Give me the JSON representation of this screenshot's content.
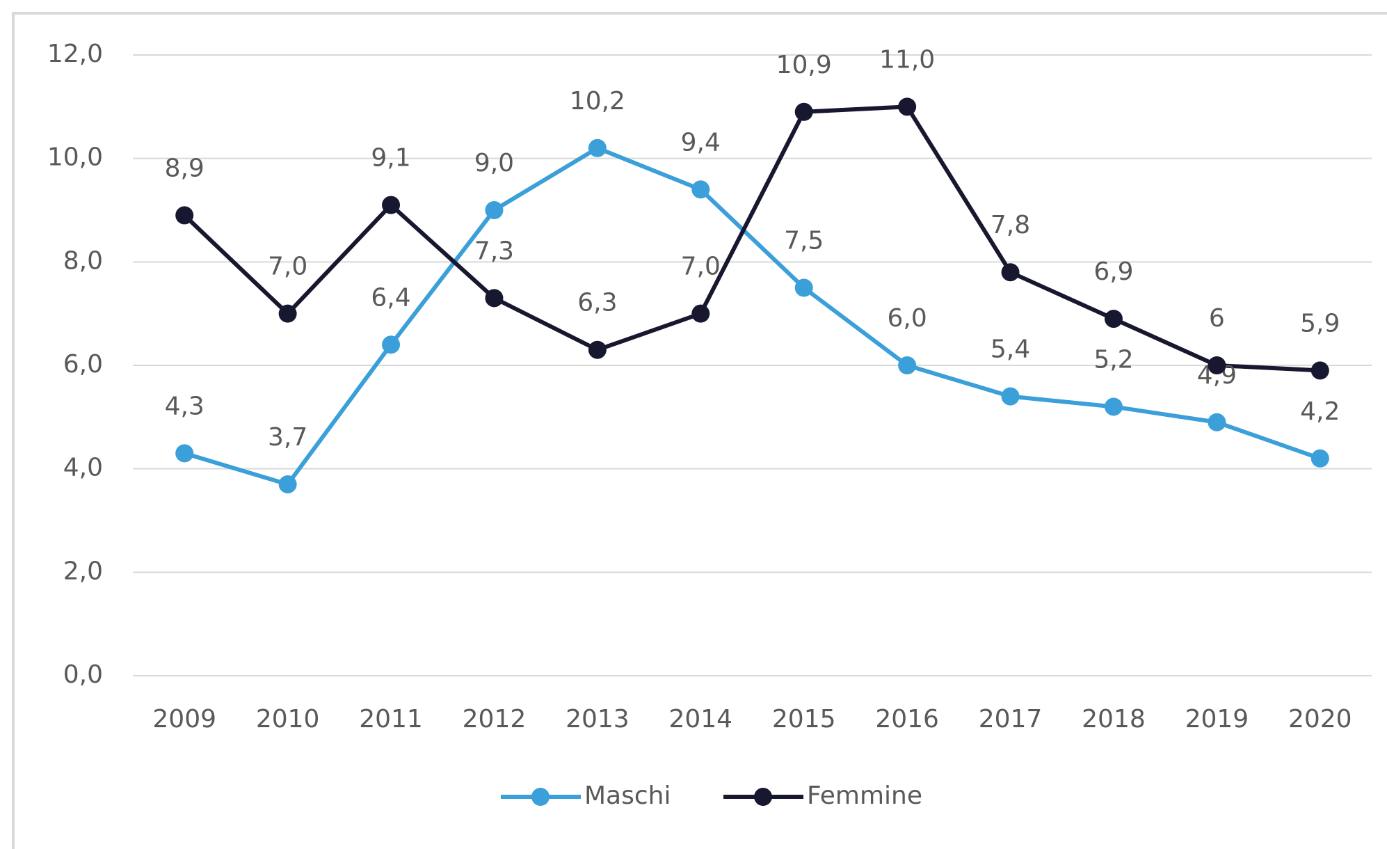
{
  "chart_data": {
    "type": "line",
    "categories": [
      "2009",
      "2010",
      "2011",
      "2012",
      "2013",
      "2014",
      "2015",
      "2016",
      "2017",
      "2018",
      "2019",
      "2020"
    ],
    "series": [
      {
        "name": "Maschi",
        "color": "#3b9fd9",
        "values": [
          4.3,
          3.7,
          6.4,
          9.0,
          10.2,
          9.4,
          7.5,
          6.0,
          5.4,
          5.2,
          4.9,
          4.2
        ],
        "value_labels": [
          "4,3",
          "3,7",
          "6,4",
          "9,0",
          "10,2",
          "9,4",
          "7,5",
          "6,0",
          "5,4",
          "5,2",
          "4,9",
          "4,2"
        ]
      },
      {
        "name": "Femmine",
        "color": "#17172f",
        "values": [
          8.9,
          7.0,
          9.1,
          7.3,
          6.3,
          7.0,
          10.9,
          11.0,
          7.8,
          6.9,
          6,
          5.9
        ],
        "value_labels": [
          "8,9",
          "7,0",
          "9,1",
          "7,3",
          "6,3",
          "7,0",
          "10,9",
          "11,0",
          "7,8",
          "6,9",
          "6",
          "5,9"
        ]
      }
    ],
    "ylim": [
      0,
      12
    ],
    "yticks": [
      {
        "value": 0,
        "label": "0,0"
      },
      {
        "value": 2,
        "label": "2,0"
      },
      {
        "value": 4,
        "label": "4,0"
      },
      {
        "value": 6,
        "label": "6,0"
      },
      {
        "value": 8,
        "label": "8,0"
      },
      {
        "value": 10,
        "label": "10,0"
      },
      {
        "value": 12,
        "label": "12,0"
      }
    ],
    "grid": true,
    "legend": "bottom"
  }
}
